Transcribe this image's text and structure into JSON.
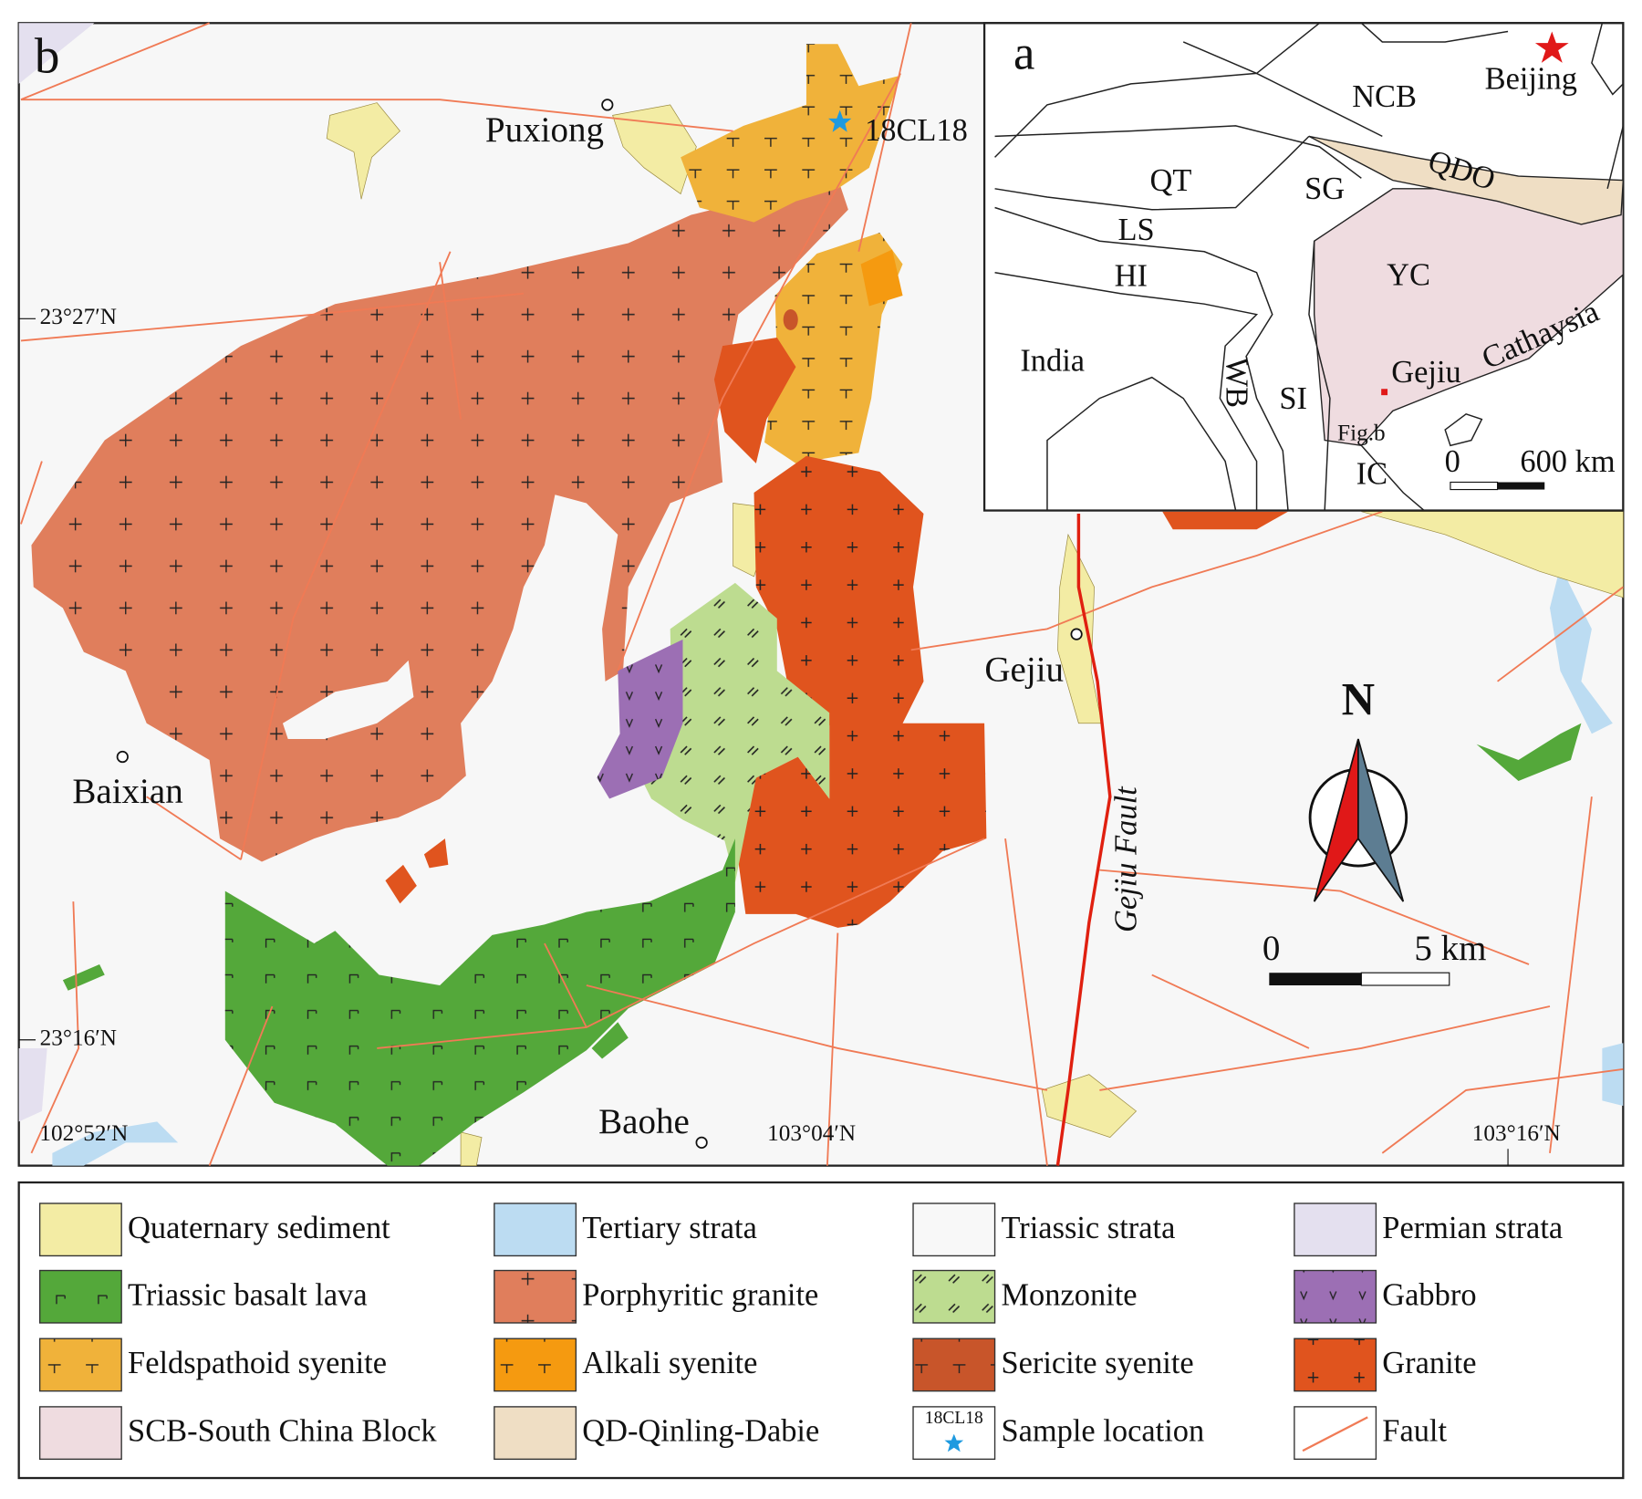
{
  "map_b": {
    "panel_label": "b",
    "places": [
      "Puxiong",
      "Baixian",
      "Gejiu",
      "Baohe"
    ],
    "sample": "18CL18",
    "fault_label": "Gejiu Fault",
    "lat_labels": [
      "23°27′N",
      "23°16′N"
    ],
    "lon_labels": [
      "102°52′N",
      "103°04′N",
      "103°16′N"
    ],
    "north": "N",
    "scale": [
      "0",
      "5 km"
    ]
  },
  "map_a": {
    "panel_label": "a",
    "regions": [
      "NCB",
      "QT",
      "SG",
      "LS",
      "HI",
      "YC",
      "India",
      "WB",
      "SI",
      "IC",
      "QDO",
      "Cathaysia"
    ],
    "city": "Beijing",
    "location": "Gejiu",
    "fig_ref": "Fig.b",
    "scale": [
      "0",
      "600 km"
    ]
  },
  "legend": [
    {
      "label": "Quaternary sediment",
      "color": "#f3eca4"
    },
    {
      "label": "Tertiary strata",
      "color": "#bcdcf2"
    },
    {
      "label": "Triassic strata",
      "color": "#f8f8f8"
    },
    {
      "label": "Permian strata",
      "color": "#e4e0ef"
    },
    {
      "label": "Triassic basalt lava",
      "color": "#54a83a"
    },
    {
      "label": "Porphyritic granite",
      "color": "#e07e5c"
    },
    {
      "label": "Monzonite",
      "color": "#bddc90"
    },
    {
      "label": "Gabbro",
      "color": "#9c6fb4"
    },
    {
      "label": "Feldspathoid syenite",
      "color": "#f0b23a"
    },
    {
      "label": "Alkali syenite",
      "color": "#f59a10"
    },
    {
      "label": "Sericite syenite",
      "color": "#c8552a"
    },
    {
      "label": "Granite",
      "color": "#e0541e"
    },
    {
      "label": "SCB-South China Block",
      "color": "#efdce0"
    },
    {
      "label": "QD-Qinling-Dabie",
      "color": "#efdec4"
    },
    {
      "label": "Sample location",
      "swatch_text": "18CL18",
      "color": "#ffffff"
    },
    {
      "label": "Fault",
      "color": "#ffffff"
    }
  ]
}
